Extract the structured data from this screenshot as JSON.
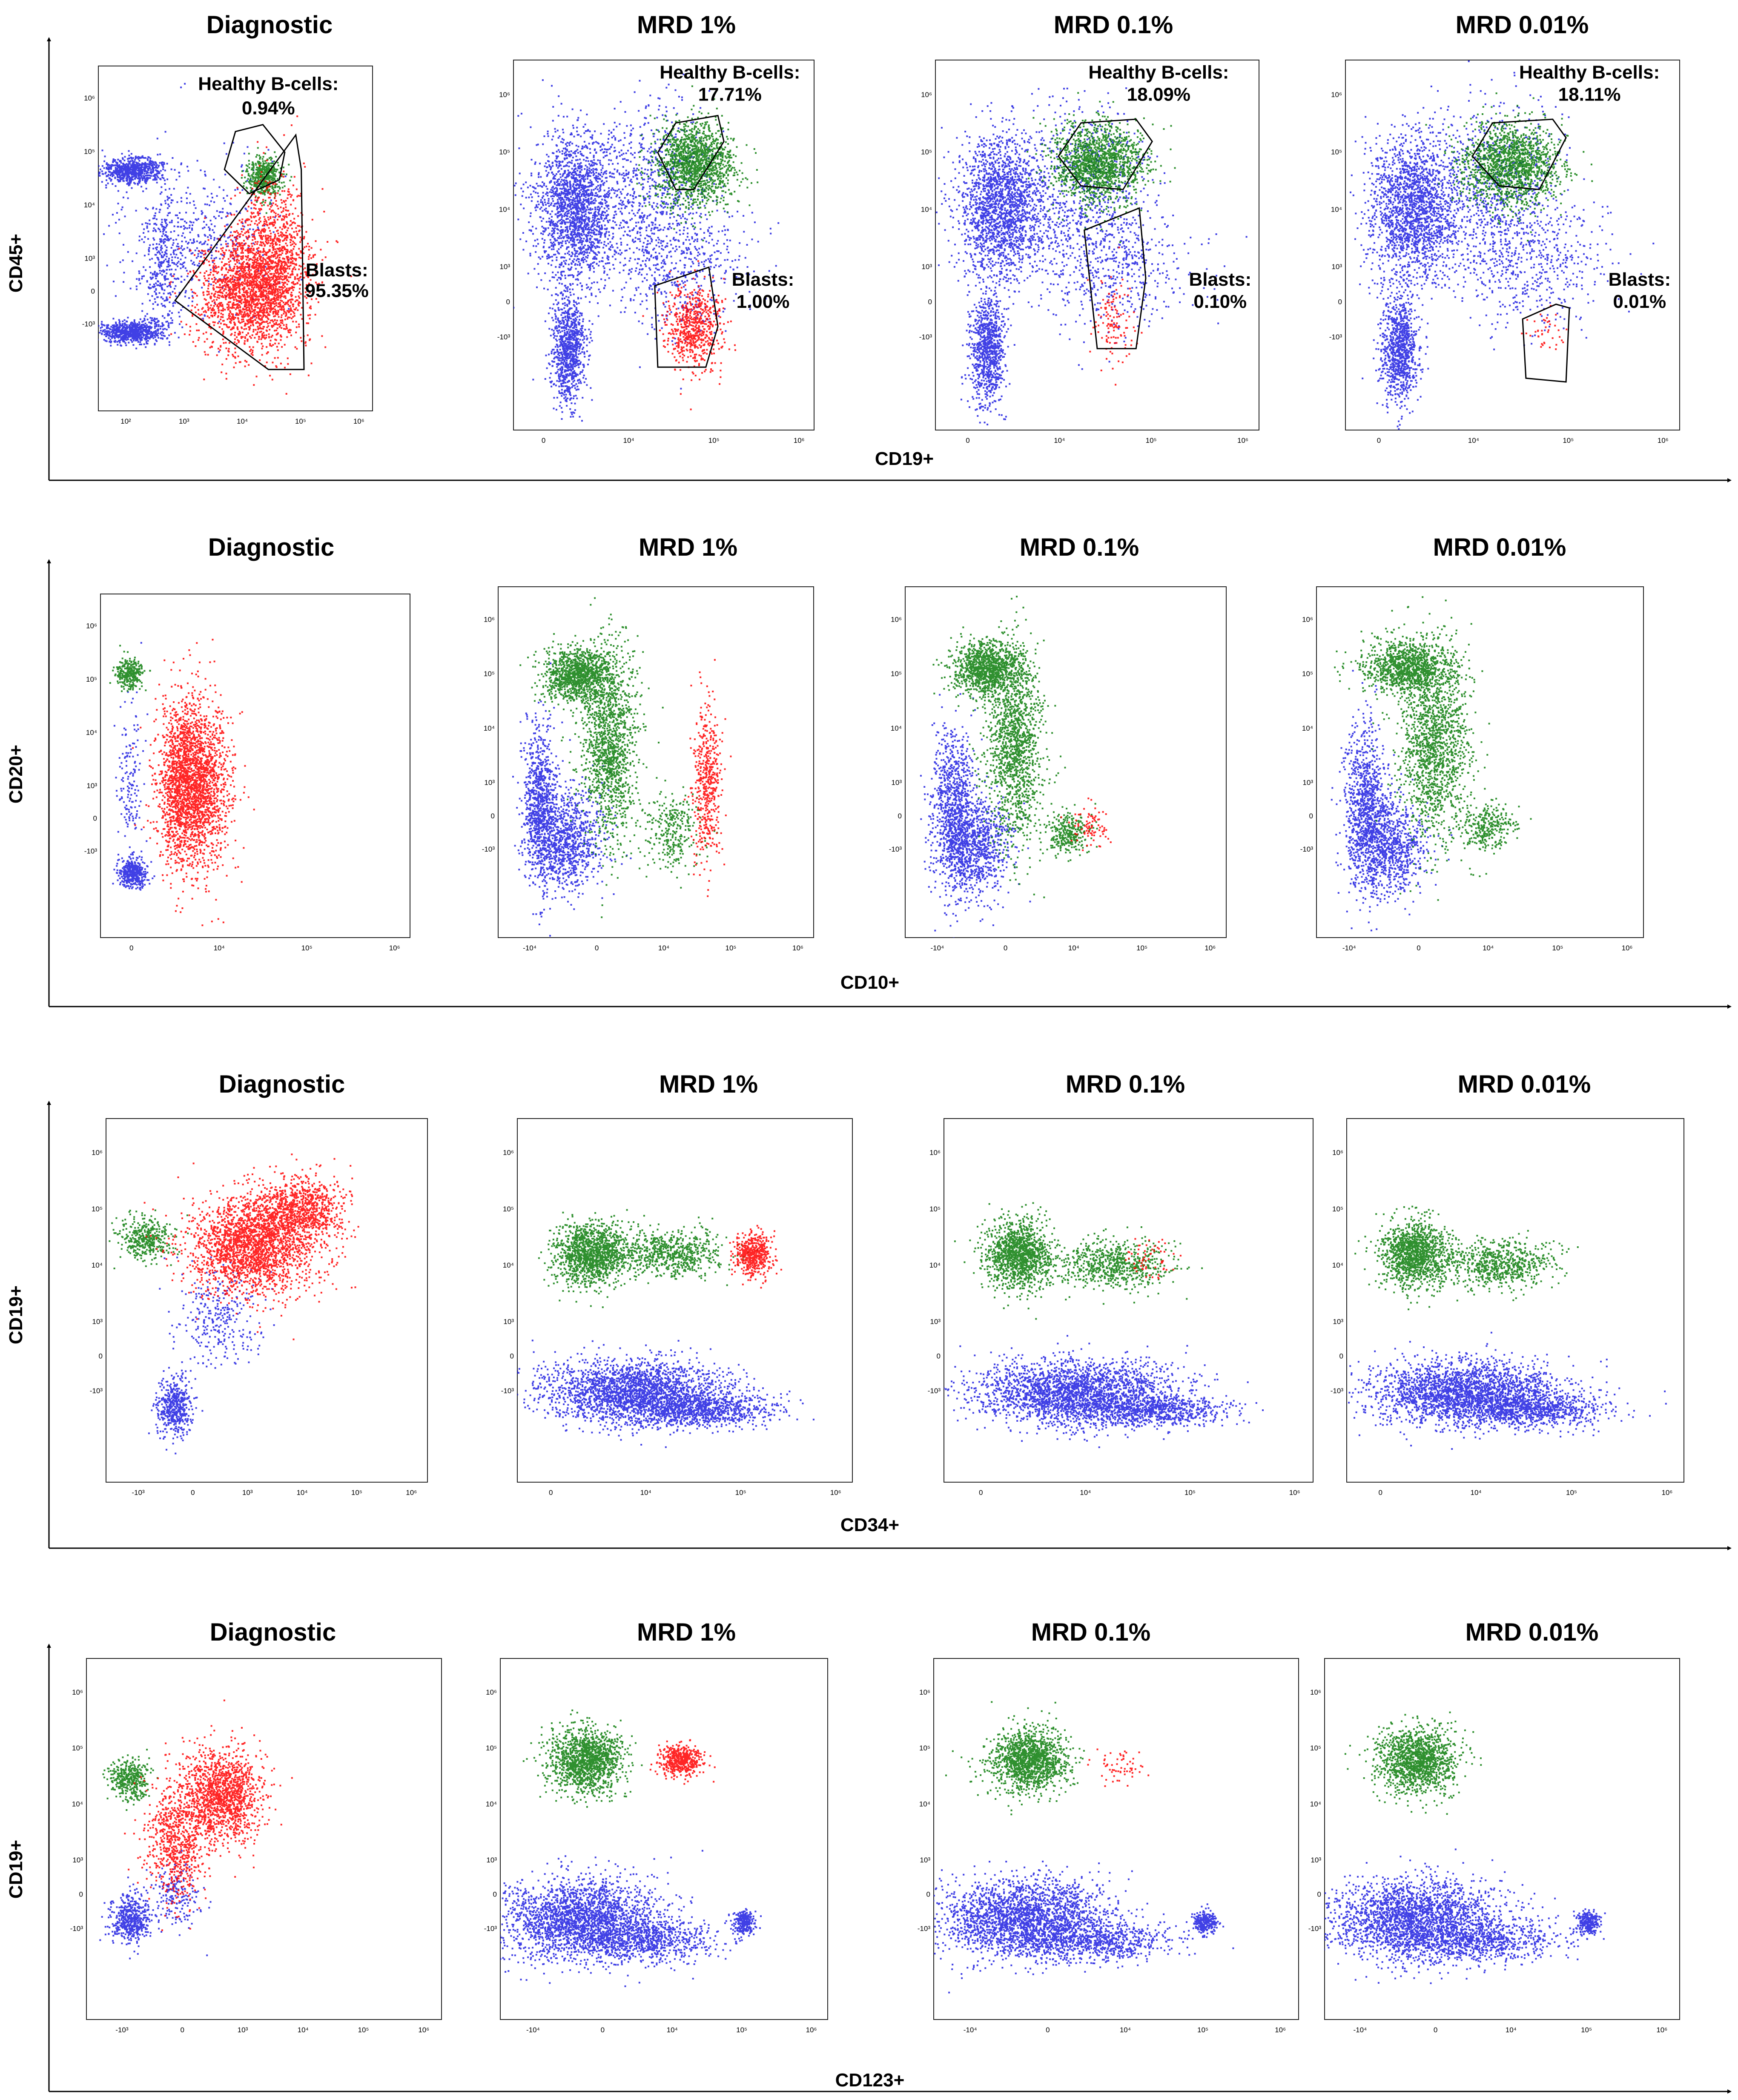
{
  "chart_data": [
    {
      "type": "scatter",
      "row": 1,
      "xlabel": "CD19+",
      "ylabel": "CD45+",
      "panels": [
        {
          "title": "Diagnostic",
          "x_ticks": [
            "10²",
            "10³",
            "10⁴",
            "10⁵",
            "10⁶"
          ],
          "y_ticks": [
            "10⁶",
            "10⁵",
            "10⁴",
            "10³",
            "0",
            "-10³"
          ],
          "gates": [
            {
              "name": "Healthy B-cells:",
              "value": "0.94%"
            },
            {
              "name": "Blasts:",
              "value": "95.35%"
            }
          ]
        },
        {
          "title": "MRD 1%",
          "x_ticks": [
            "0",
            "10⁴",
            "10⁵",
            "10⁶"
          ],
          "y_ticks": [
            "10⁶",
            "10⁵",
            "10⁴",
            "10³",
            "0",
            "-10³"
          ],
          "gates": [
            {
              "name": "Healthy B-cells:",
              "value": "17.71%"
            },
            {
              "name": "Blasts:",
              "value": "1.00%"
            }
          ]
        },
        {
          "title": "MRD 0.1%",
          "x_ticks": [
            "0",
            "10⁴",
            "10⁵",
            "10⁶"
          ],
          "y_ticks": [
            "10⁶",
            "10⁵",
            "10⁴",
            "10³",
            "0",
            "-10³"
          ],
          "gates": [
            {
              "name": "Healthy B-cells:",
              "value": "18.09%"
            },
            {
              "name": "Blasts:",
              "value": "0.10%"
            }
          ]
        },
        {
          "title": "MRD 0.01%",
          "x_ticks": [
            "0",
            "10⁴",
            "10⁵",
            "10⁶"
          ],
          "y_ticks": [
            "10⁶",
            "10⁵",
            "10⁴",
            "10³",
            "0",
            "-10³"
          ],
          "gates": [
            {
              "name": "Healthy B-cells:",
              "value": "18.11%"
            },
            {
              "name": "Blasts:",
              "value": "0.01%"
            }
          ]
        }
      ]
    },
    {
      "type": "scatter",
      "row": 2,
      "xlabel": "CD10+",
      "ylabel": "CD20+",
      "panels": [
        {
          "title": "Diagnostic",
          "x_ticks": [
            "0",
            "10⁴",
            "10⁵",
            "10⁶"
          ],
          "y_ticks": [
            "10⁶",
            "10⁵",
            "10⁴",
            "10³",
            "0",
            "-10³"
          ]
        },
        {
          "title": "MRD 1%",
          "x_ticks": [
            "-10⁴",
            "0",
            "10⁴",
            "10⁵",
            "10⁶"
          ],
          "y_ticks": [
            "10⁶",
            "10⁵",
            "10⁴",
            "10³",
            "0",
            "-10³"
          ]
        },
        {
          "title": "MRD 0.1%",
          "x_ticks": [
            "-10⁴",
            "0",
            "10⁴",
            "10⁵",
            "10⁶"
          ],
          "y_ticks": [
            "10⁶",
            "10⁵",
            "10⁴",
            "10³",
            "0",
            "-10³"
          ]
        },
        {
          "title": "MRD 0.01%",
          "x_ticks": [
            "-10⁴",
            "0",
            "10⁴",
            "10⁵",
            "10⁶"
          ],
          "y_ticks": [
            "10⁶",
            "10⁵",
            "10⁴",
            "10³",
            "0",
            "-10³"
          ]
        }
      ]
    },
    {
      "type": "scatter",
      "row": 3,
      "xlabel": "CD34+",
      "ylabel": "CD19+",
      "panels": [
        {
          "title": "Diagnostic",
          "x_ticks": [
            "-10³",
            "0",
            "10³",
            "10⁴",
            "10⁵",
            "10⁶"
          ],
          "y_ticks": [
            "10⁶",
            "10⁵",
            "10⁴",
            "10³",
            "0",
            "-10³"
          ]
        },
        {
          "title": "MRD 1%",
          "x_ticks": [
            "0",
            "10⁴",
            "10⁵",
            "10⁶"
          ],
          "y_ticks": [
            "10⁶",
            "10⁵",
            "10⁴",
            "10³",
            "0",
            "-10³"
          ]
        },
        {
          "title": "MRD 0.1%",
          "x_ticks": [
            "0",
            "10⁴",
            "10⁵",
            "10⁶"
          ],
          "y_ticks": [
            "10⁶",
            "10⁵",
            "10⁴",
            "10³",
            "0",
            "-10³"
          ]
        },
        {
          "title": "MRD 0.01%",
          "x_ticks": [
            "0",
            "10⁴",
            "10⁵",
            "10⁶"
          ],
          "y_ticks": [
            "10⁶",
            "10⁵",
            "10⁴",
            "10³",
            "0",
            "-10³"
          ]
        }
      ]
    },
    {
      "type": "scatter",
      "row": 4,
      "xlabel": "CD123+",
      "ylabel": "CD19+",
      "panels": [
        {
          "title": "Diagnostic",
          "x_ticks": [
            "-10³",
            "0",
            "10³",
            "10⁴",
            "10⁵",
            "10⁶"
          ],
          "y_ticks": [
            "10⁶",
            "10⁵",
            "10⁴",
            "10³",
            "0",
            "-10³"
          ]
        },
        {
          "title": "MRD 1%",
          "x_ticks": [
            "-10⁴",
            "0",
            "10⁴",
            "10⁵",
            "10⁶"
          ],
          "y_ticks": [
            "10⁶",
            "10⁵",
            "10⁴",
            "10³",
            "0",
            "-10³"
          ]
        },
        {
          "title": "MRD 0.1%",
          "x_ticks": [
            "-10⁴",
            "0",
            "10⁴",
            "10⁵",
            "10⁶"
          ],
          "y_ticks": [
            "10⁶",
            "10⁵",
            "10⁴",
            "10³",
            "0",
            "-10³"
          ]
        },
        {
          "title": "MRD 0.01%",
          "x_ticks": [
            "-10⁴",
            "0",
            "10⁴",
            "10⁵",
            "10⁶"
          ],
          "y_ticks": [
            "10⁶",
            "10⁵",
            "10⁴",
            "10³",
            "0",
            "-10³"
          ]
        }
      ]
    }
  ],
  "colors": {
    "other_cells": "#1f1fe0",
    "healthy_b_cells": "#0a7d0a",
    "blasts": "#ff0000",
    "axis": "#000000"
  }
}
